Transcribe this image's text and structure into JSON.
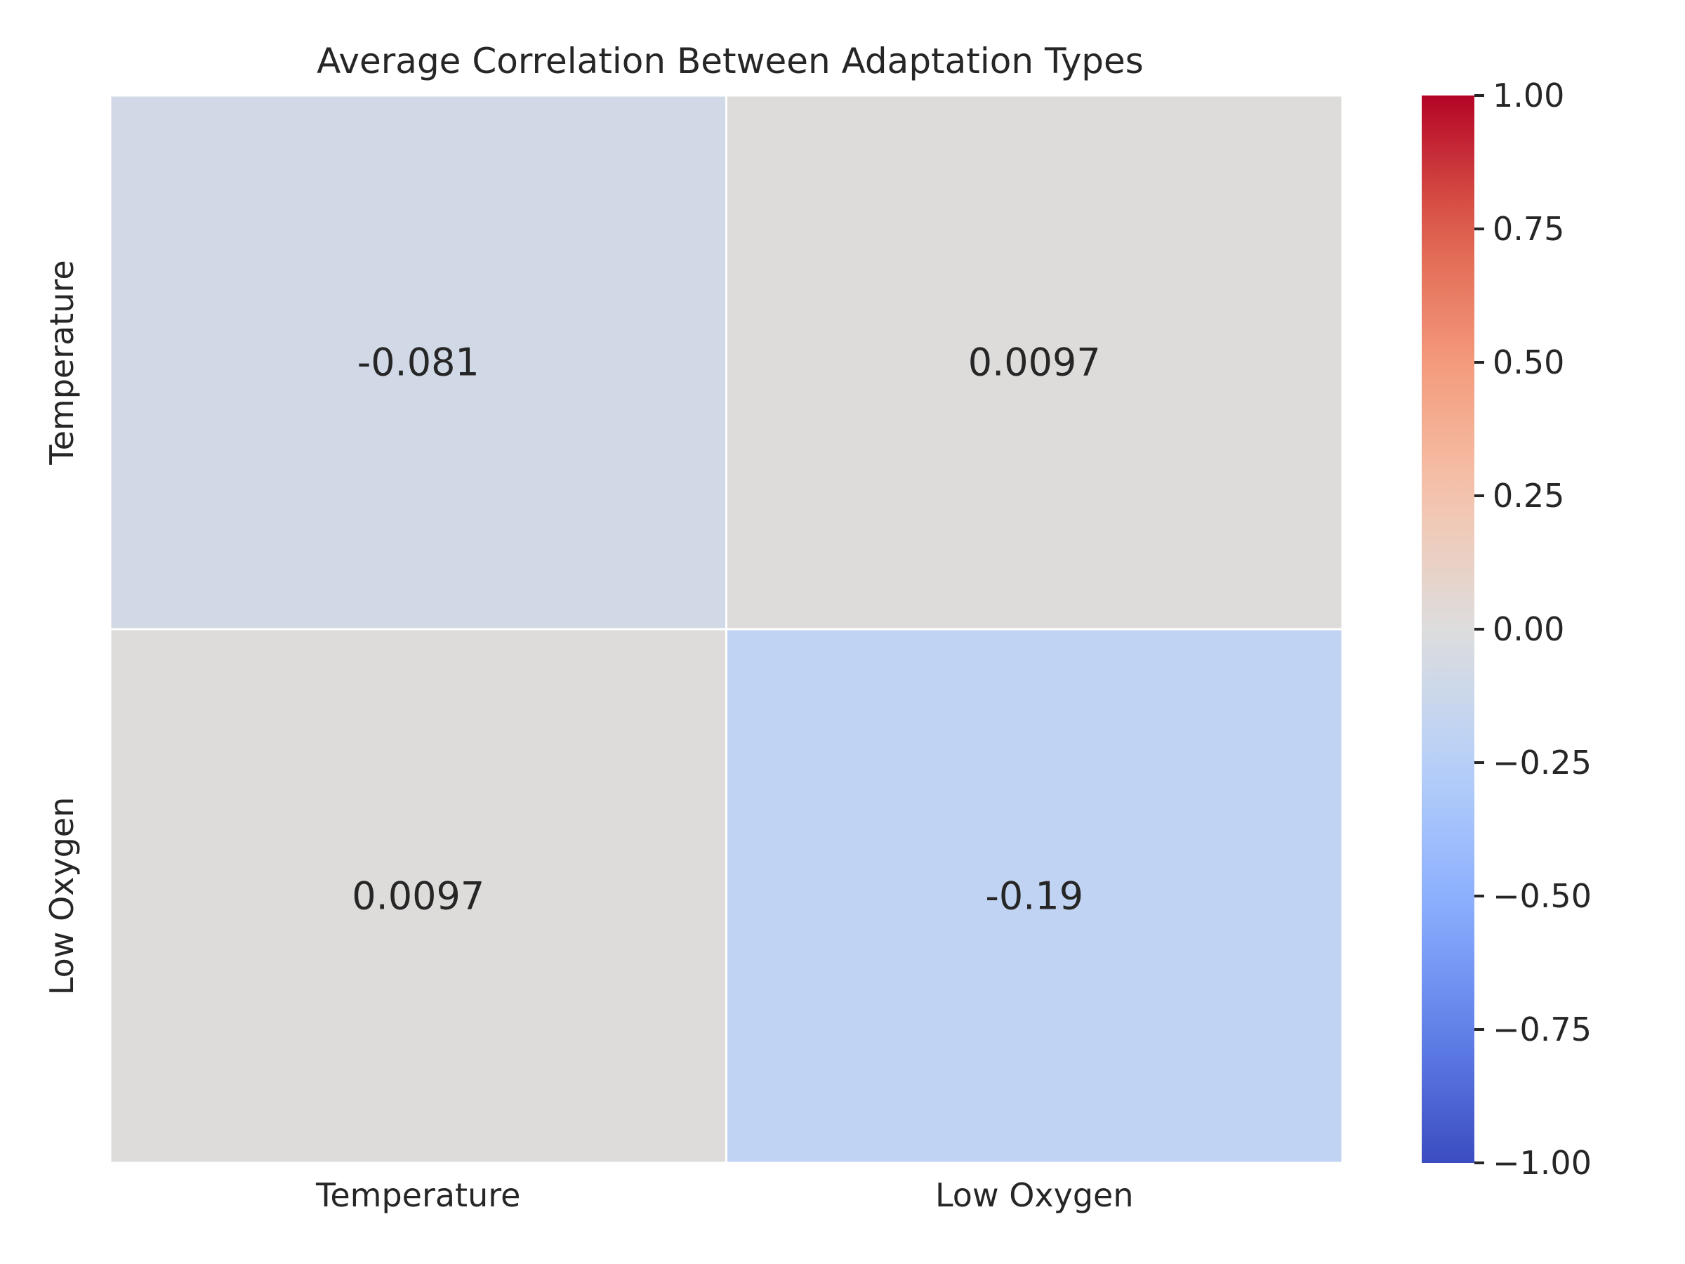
{
  "chart_data": {
    "type": "heatmap",
    "title": "Average Correlation Between Adaptation Types",
    "x_labels": [
      "Temperature",
      "Low Oxygen"
    ],
    "y_labels": [
      "Temperature",
      "Low Oxygen"
    ],
    "values": [
      [
        -0.081,
        0.0097
      ],
      [
        0.0097,
        -0.19
      ]
    ],
    "annotations": [
      [
        "-0.081",
        "0.0097"
      ],
      [
        "0.0097",
        "-0.19"
      ]
    ],
    "colormap": "coolwarm",
    "vmin": -1.0,
    "vmax": 1.0,
    "colorbar": {
      "ticks": [
        1.0,
        0.75,
        0.5,
        0.25,
        0.0,
        -0.25,
        -0.5,
        -0.75,
        -1.0
      ],
      "tick_labels": [
        "1.00",
        "0.75",
        "0.50",
        "0.25",
        "0.00",
        "−0.25",
        "−0.50",
        "−0.75",
        "−1.00"
      ]
    },
    "cell_border_color": "#ffffff",
    "xlabel": "",
    "ylabel": ""
  }
}
